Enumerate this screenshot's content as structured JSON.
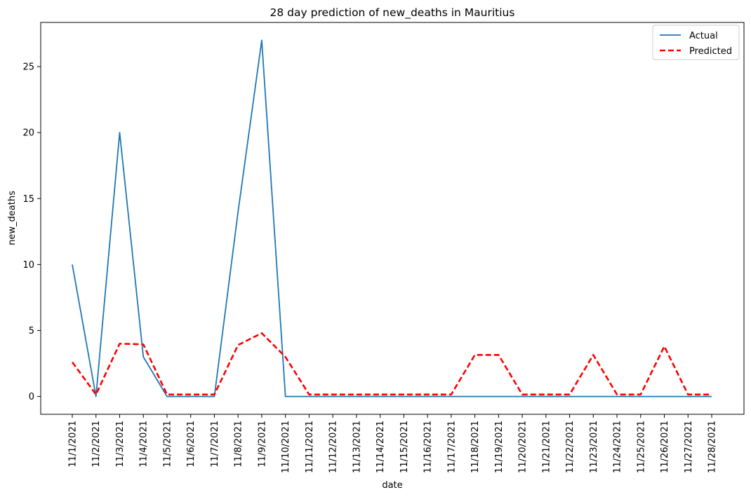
{
  "chart_data": {
    "type": "line",
    "title": "28 day prediction of new_deaths in Mauritius",
    "xlabel": "date",
    "ylabel": "new_deaths",
    "categories": [
      "11/1/2021",
      "11/2/2021",
      "11/3/2021",
      "11/4/2021",
      "11/5/2021",
      "11/6/2021",
      "11/7/2021",
      "11/8/2021",
      "11/9/2021",
      "11/10/2021",
      "11/11/2021",
      "11/12/2021",
      "11/13/2021",
      "11/14/2021",
      "11/15/2021",
      "11/16/2021",
      "11/17/2021",
      "11/18/2021",
      "11/19/2021",
      "11/20/2021",
      "11/21/2021",
      "11/22/2021",
      "11/23/2021",
      "11/24/2021",
      "11/25/2021",
      "11/26/2021",
      "11/27/2021",
      "11/28/2021"
    ],
    "yticks": [
      0,
      5,
      10,
      15,
      20,
      25
    ],
    "ylim": [
      -1.35,
      28.35
    ],
    "grid": false,
    "legend_position": "top-right",
    "series": [
      {
        "name": "Actual",
        "color": "#1f77b4",
        "style": "solid",
        "values": [
          10,
          0,
          20,
          3,
          0,
          0,
          0,
          14,
          27,
          0,
          0,
          0,
          0,
          0,
          0,
          0,
          0,
          0,
          0,
          0,
          0,
          0,
          0,
          0,
          0,
          0,
          0,
          0
        ]
      },
      {
        "name": "Predicted",
        "color": "#ff0000",
        "style": "dashed",
        "values": [
          2.6,
          0.15,
          4.0,
          3.95,
          0.15,
          0.15,
          0.15,
          3.9,
          4.8,
          3.0,
          0.15,
          0.15,
          0.15,
          0.15,
          0.15,
          0.15,
          0.15,
          3.15,
          3.15,
          0.15,
          0.15,
          0.15,
          3.15,
          0.15,
          0.15,
          3.8,
          0.15,
          0.15
        ]
      }
    ]
  }
}
